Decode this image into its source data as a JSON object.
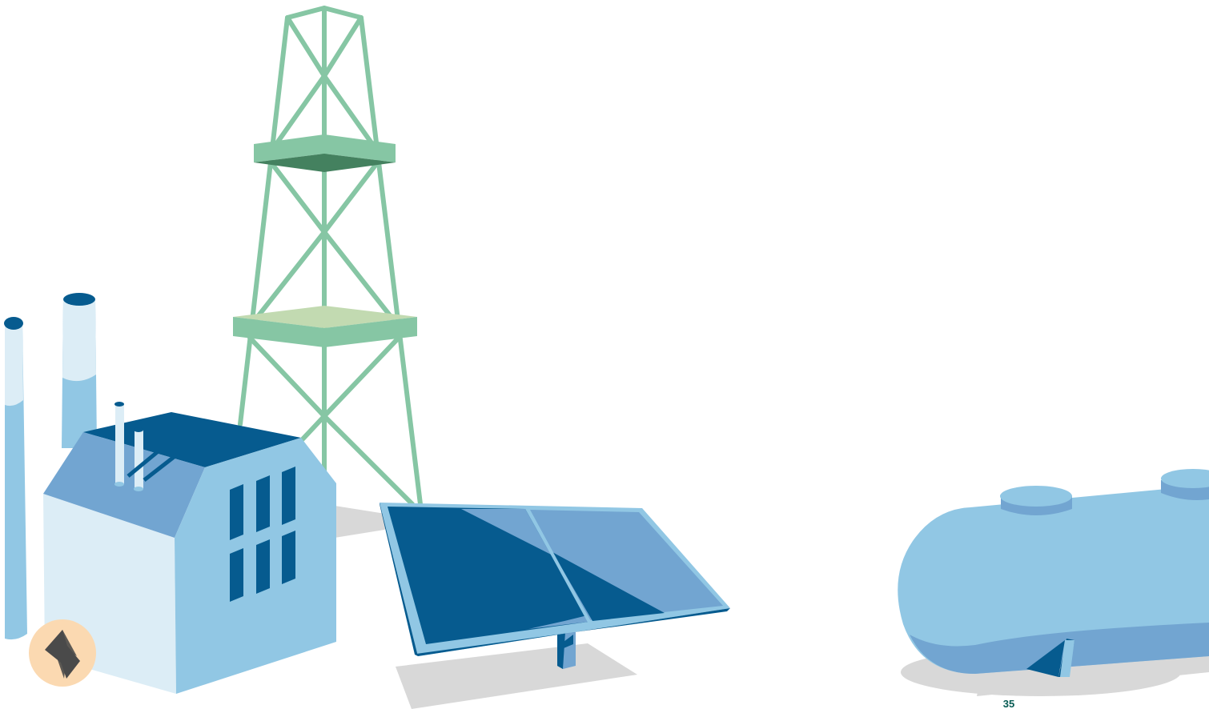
{
  "page": {
    "number": "35"
  },
  "colors": {
    "tower_green": "#86c6a4",
    "tower_dark_green": "#44815f",
    "tower_light_green": "#c2dab1",
    "navy": "#065b8f",
    "mid_blue": "#72a5d1",
    "sky_blue": "#91c7e4",
    "pale_blue": "#dcedf6",
    "shadow_gray": "#d8d8d8",
    "badge_orange": "#fbd9b1",
    "bolt_gray": "#4a4a4a",
    "page_number_green": "#065b53"
  },
  "icons": {
    "energy_badge": "lightning-bolt-icon"
  }
}
